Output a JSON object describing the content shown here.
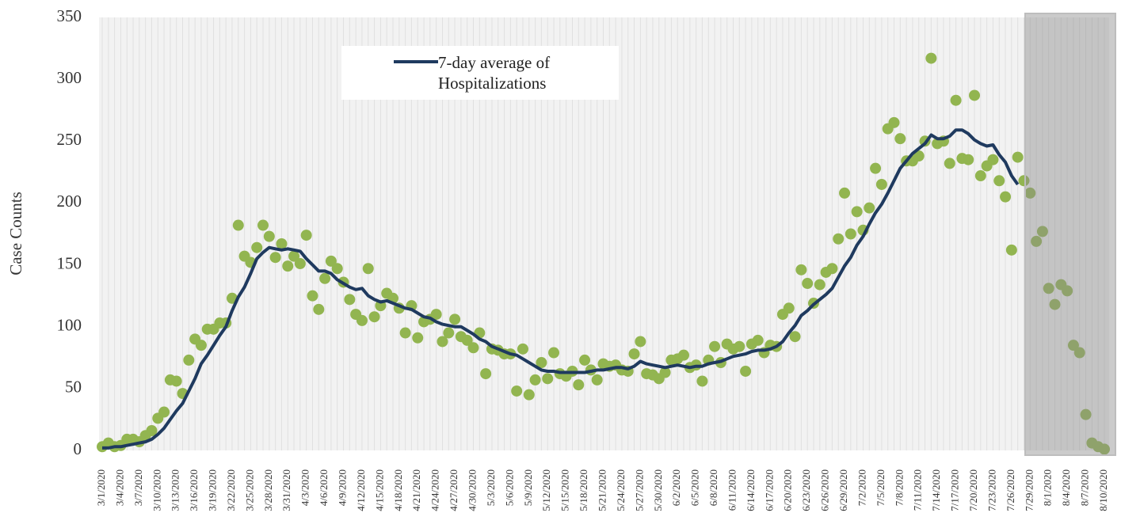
{
  "chart_data": {
    "type": "line_scatter",
    "y_label": "Case Counts",
    "ylim": [
      0,
      350
    ],
    "yticks": [
      0,
      50,
      100,
      150,
      200,
      250,
      300,
      350
    ],
    "xgrid": true,
    "categories": [
      "3/1/2020",
      null,
      null,
      "3/4/2020",
      null,
      null,
      "3/7/2020",
      null,
      null,
      "3/10/2020",
      null,
      null,
      "3/13/2020",
      null,
      null,
      "3/16/2020",
      null,
      null,
      "3/19/2020",
      null,
      null,
      "3/22/2020",
      null,
      null,
      "3/25/2020",
      null,
      null,
      "3/28/2020",
      null,
      null,
      "3/31/2020",
      null,
      null,
      "4/3/2020",
      null,
      null,
      "4/6/2020",
      null,
      null,
      "4/9/2020",
      null,
      null,
      "4/12/2020",
      null,
      null,
      "4/15/2020",
      null,
      null,
      "4/18/2020",
      null,
      null,
      "4/21/2020",
      null,
      null,
      "4/24/2020",
      null,
      null,
      "4/27/2020",
      null,
      null,
      "4/30/2020",
      null,
      null,
      "5/3/2020",
      null,
      null,
      "5/6/2020",
      null,
      null,
      "5/9/2020",
      null,
      null,
      "5/12/2020",
      null,
      null,
      "5/15/2020",
      null,
      null,
      "5/18/2020",
      null,
      null,
      "5/21/2020",
      null,
      null,
      "5/24/2020",
      null,
      null,
      "5/27/2020",
      null,
      null,
      "5/30/2020",
      null,
      null,
      "6/2/2020",
      null,
      null,
      "6/5/2020",
      null,
      null,
      "6/8/2020",
      null,
      null,
      "6/11/2020",
      null,
      null,
      "6/14/2020",
      null,
      null,
      "6/17/2020",
      null,
      null,
      "6/20/2020",
      null,
      null,
      "6/23/2020",
      null,
      null,
      "6/26/2020",
      null,
      null,
      "6/29/2020",
      null,
      null,
      "7/2/2020",
      null,
      null,
      "7/5/2020",
      null,
      null,
      "7/8/2020",
      null,
      null,
      "7/11/2020",
      null,
      null,
      "7/14/2020",
      null,
      null,
      "7/17/2020",
      null,
      null,
      "7/20/2020",
      null,
      null,
      "7/23/2020",
      null,
      null,
      "7/26/2020",
      null,
      null,
      "7/29/2020",
      null,
      null,
      "8/1/2020",
      null,
      null,
      "8/4/2020",
      null,
      null,
      "8/7/2020",
      null,
      null,
      "8/10/2020"
    ],
    "series": [
      {
        "type": "scatter",
        "color": "#92b550",
        "values": [
          3,
          6,
          3,
          4,
          9,
          9,
          7,
          12,
          16,
          26,
          31,
          57,
          56,
          46,
          73,
          90,
          85,
          98,
          98,
          103,
          103,
          123,
          182,
          157,
          152,
          164,
          182,
          173,
          156,
          167,
          149,
          157,
          151,
          174,
          125,
          114,
          139,
          153,
          147,
          136,
          122,
          110,
          105,
          147,
          108,
          117,
          127,
          123,
          115,
          95,
          117,
          91,
          104,
          106,
          110,
          88,
          95,
          106,
          92,
          89,
          83,
          95,
          62,
          82,
          81,
          78,
          78,
          48,
          82,
          45,
          57,
          71,
          58,
          79,
          62,
          60,
          64,
          53,
          73,
          65,
          57,
          70,
          68,
          69,
          65,
          64,
          78,
          88,
          62,
          61,
          58,
          63,
          73,
          74,
          77,
          67,
          69,
          56,
          73,
          84,
          71,
          86,
          82,
          84,
          64,
          86,
          89,
          79,
          85,
          84,
          110,
          115,
          92,
          146,
          135,
          119,
          134,
          144,
          147,
          171,
          208,
          175,
          193,
          178,
          196,
          228,
          215,
          260,
          265,
          252,
          234,
          234,
          238,
          250,
          317,
          248,
          250,
          232,
          283,
          236,
          235,
          287,
          222,
          230,
          235,
          218,
          205,
          162,
          237,
          218,
          208,
          169,
          177,
          131,
          118,
          134,
          129,
          85,
          79,
          29,
          6,
          3,
          1
        ]
      },
      {
        "type": "line",
        "name": "7-day average of Hospitalizations",
        "color": "#1f3a5f",
        "values": [
          2,
          2,
          3,
          3,
          4,
          5,
          6,
          7,
          9,
          13,
          18,
          25,
          32,
          38,
          48,
          58,
          70,
          77,
          85,
          93,
          100,
          113,
          124,
          132,
          143,
          155,
          160,
          164,
          163,
          162,
          163,
          162,
          161,
          155,
          150,
          145,
          145,
          143,
          138,
          135,
          132,
          130,
          131,
          125,
          122,
          120,
          121,
          119,
          117,
          115,
          114,
          111,
          108,
          107,
          104,
          102,
          101,
          100,
          100,
          97,
          94,
          90,
          88,
          84,
          82,
          80,
          78,
          77,
          74,
          71,
          68,
          65,
          64,
          64,
          63,
          63,
          63,
          63,
          63,
          64,
          65,
          65,
          66,
          67,
          67,
          66,
          68,
          72,
          70,
          69,
          68,
          67,
          68,
          69,
          68,
          67,
          68,
          68,
          70,
          71,
          72,
          74,
          76,
          77,
          78,
          80,
          81,
          81,
          82,
          84,
          88,
          95,
          101,
          109,
          113,
          118,
          122,
          126,
          131,
          140,
          149,
          156,
          166,
          173,
          183,
          192,
          199,
          208,
          218,
          228,
          234,
          240,
          244,
          248,
          255,
          252,
          252,
          254,
          259,
          259,
          256,
          251,
          248,
          246,
          247,
          239,
          233,
          222,
          215,
          null,
          null,
          null,
          null,
          null,
          null,
          null,
          null,
          null,
          null,
          null,
          null,
          null,
          null
        ]
      }
    ]
  }
}
